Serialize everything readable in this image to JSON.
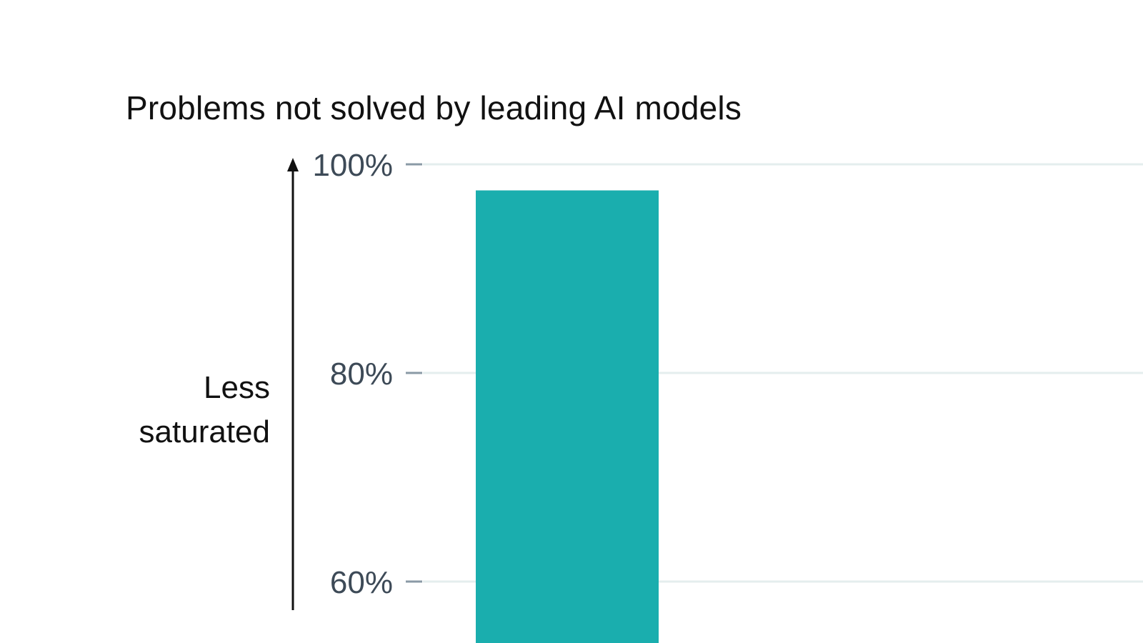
{
  "chart_data": {
    "type": "bar",
    "title": "Problems not solved by leading AI models",
    "ylabel_lines": [
      "Less",
      "saturated"
    ],
    "categories": [
      ""
    ],
    "values": [
      97.5
    ],
    "ylim_visible": [
      55.8,
      100
    ],
    "yticks": [
      100,
      80,
      60
    ],
    "ytick_labels": [
      "100%",
      "80%",
      "60%"
    ],
    "grid": true,
    "bar_color": "#1aaeae",
    "grid_color": "#e4eeee",
    "tick_color": "#3d4a57",
    "arrow_color": "#111111"
  }
}
